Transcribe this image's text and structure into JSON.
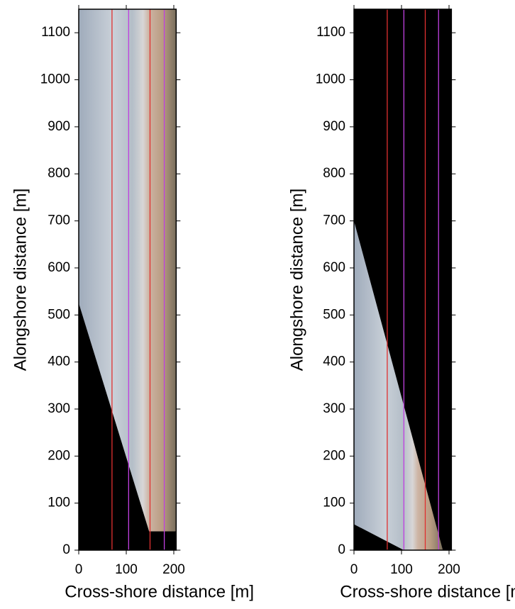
{
  "chart_data": [
    {
      "type": "image",
      "xlabel": "Cross-shore distance [m]",
      "ylabel": "Alongshore distance [m]",
      "xlim": [
        0,
        205
      ],
      "ylim": [
        0,
        1150
      ],
      "xticks": [
        0,
        100,
        200
      ],
      "yticks": [
        0,
        100,
        200,
        300,
        400,
        500,
        600,
        700,
        800,
        900,
        1000,
        1100
      ],
      "footprint": {
        "x": [
          0,
          0,
          205,
          205,
          148
        ],
        "y": [
          525,
          1150,
          1150,
          40,
          40
        ]
      },
      "lines": [
        {
          "color": "#e03030",
          "x": 70
        },
        {
          "color": "#c040e0",
          "x": 105
        },
        {
          "color": "#e03030",
          "x": 150
        },
        {
          "color": "#c040e0",
          "x": 180
        }
      ]
    },
    {
      "type": "image",
      "xlabel": "Cross-shore distance [m]",
      "ylabel": "Alongshore distance [m]",
      "xlim": [
        0,
        205
      ],
      "ylim": [
        0,
        1150
      ],
      "xticks": [
        0,
        100,
        200
      ],
      "yticks": [
        0,
        100,
        200,
        300,
        400,
        500,
        600,
        700,
        800,
        900,
        1000,
        1100
      ],
      "footprint": {
        "x": [
          0,
          0,
          105,
          187
        ],
        "y": [
          700,
          55,
          0,
          0
        ]
      },
      "lines": [
        {
          "color": "#e03030",
          "x": 70
        },
        {
          "color": "#c040e0",
          "x": 105
        },
        {
          "color": "#e03030",
          "x": 150
        },
        {
          "color": "#c040e0",
          "x": 178
        }
      ]
    }
  ]
}
